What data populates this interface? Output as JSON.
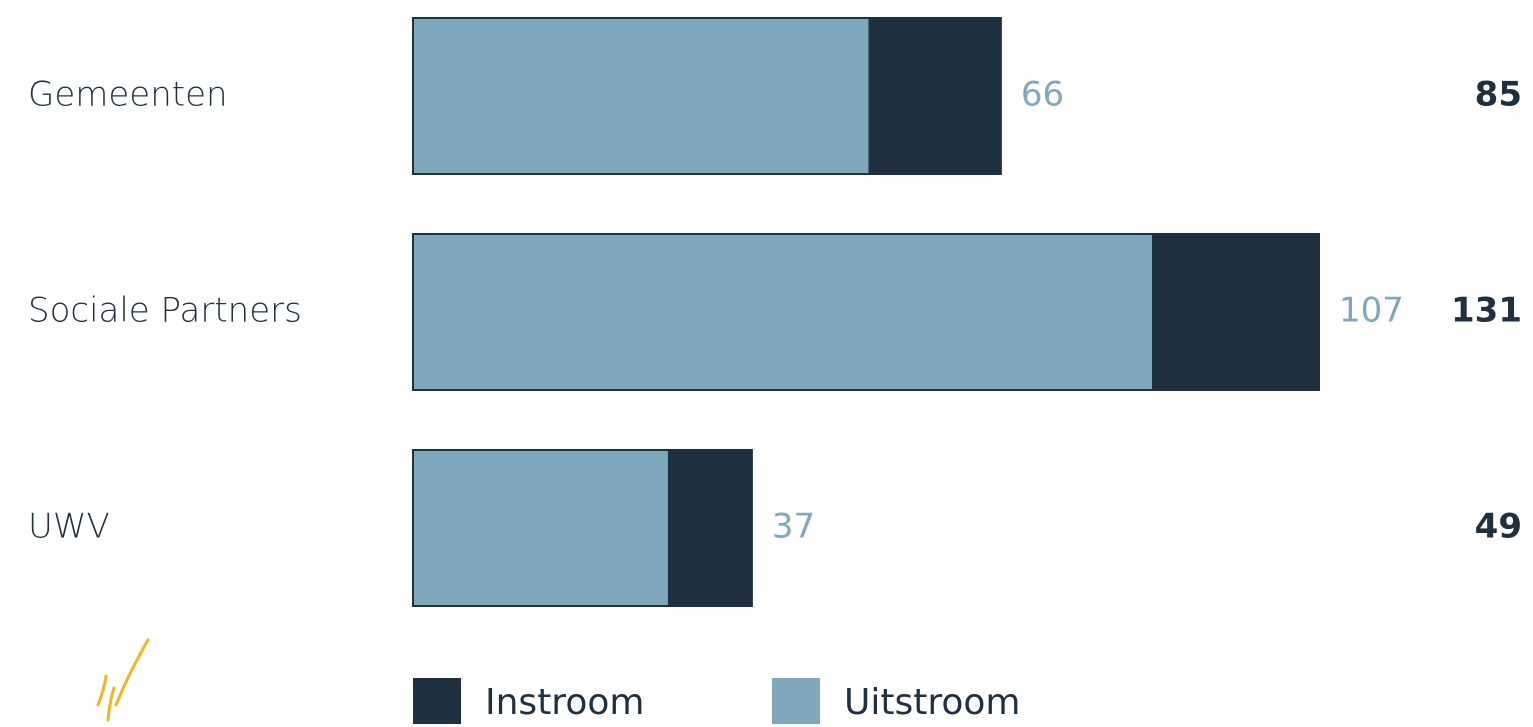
{
  "chart_data": {
    "type": "bar",
    "categories": [
      "Gemeenten",
      "Sociale Partners",
      "UWV"
    ],
    "series": [
      {
        "name": "Instroom",
        "color": "#1f3040",
        "values": [
          85,
          131,
          49
        ]
      },
      {
        "name": "Uitstroom",
        "color": "#80a8bc",
        "values": [
          66,
          107,
          37
        ]
      }
    ]
  }
}
